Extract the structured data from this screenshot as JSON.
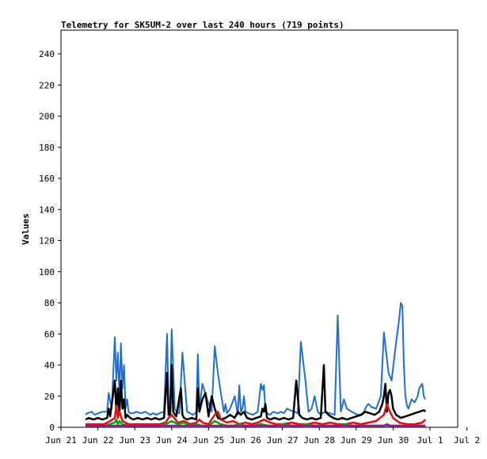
{
  "chart_data": {
    "type": "line",
    "title": "Telemetry for SK5UM-2 over last 240 hours (719 points)",
    "xlabel": "",
    "ylabel": "Values",
    "ylim": [
      0,
      255
    ],
    "xlim": [
      0,
      240
    ],
    "yticks": [
      0,
      20,
      40,
      60,
      80,
      100,
      120,
      140,
      160,
      180,
      200,
      220,
      240
    ],
    "xticks": [
      {
        "label": "Jun 21",
        "hour": 0
      },
      {
        "label": "Jun 22",
        "hour": 24
      },
      {
        "label": "Jun 23",
        "hour": 48
      },
      {
        "label": "Jun 24",
        "hour": 72
      },
      {
        "label": "Jun 25",
        "hour": 96
      },
      {
        "label": "Jun 26",
        "hour": 120
      },
      {
        "label": "Jun 27",
        "hour": 144
      },
      {
        "label": "Jun 28",
        "hour": 168
      },
      {
        "label": "Jun 29",
        "hour": 192
      },
      {
        "label": "Jun 30",
        "hour": 216
      },
      {
        "label": "Jul 1",
        "hour": 240
      },
      {
        "label": "Jul 2",
        "hour": 264
      }
    ],
    "grid": false,
    "legend": "none",
    "series": [
      {
        "color": "#1f6fd1",
        "x": [
          16,
          17,
          20,
          22,
          24,
          27,
          30,
          31,
          33,
          35,
          36,
          37,
          38,
          39,
          40,
          41,
          42,
          43,
          44,
          45,
          47,
          49,
          52,
          55,
          58,
          60,
          62,
          64,
          67,
          69,
          70,
          71,
          72,
          74,
          75,
          77,
          79,
          82,
          84,
          86,
          88,
          89,
          90,
          92,
          95,
          98,
          100,
          102,
          104,
          106,
          107,
          108,
          110,
          113,
          115,
          116,
          117,
          118,
          119,
          120,
          122,
          125,
          128,
          130,
          131,
          132,
          133,
          134,
          136,
          138,
          141,
          143,
          145,
          147,
          149,
          152,
          154,
          156,
          159,
          161,
          163,
          165,
          167,
          168,
          169,
          170,
          172,
          175,
          178,
          180,
          182,
          184,
          186,
          189,
          191,
          193,
          196,
          197,
          198,
          199,
          200,
          202,
          205,
          208,
          210,
          213,
          215,
          218,
          220,
          221,
          222,
          223,
          224,
          225,
          226,
          228,
          230,
          232,
          233,
          235,
          236,
          237
        ],
        "y": [
          8,
          9,
          10,
          8,
          9,
          10,
          10,
          22,
          12,
          58,
          30,
          48,
          20,
          54,
          25,
          40,
          12,
          18,
          10,
          9,
          9,
          10,
          9,
          10,
          8,
          9,
          8,
          9,
          10,
          60,
          12,
          15,
          63,
          12,
          10,
          9,
          48,
          10,
          9,
          8,
          10,
          47,
          12,
          28,
          18,
          10,
          52,
          35,
          22,
          10,
          15,
          9,
          12,
          20,
          8,
          27,
          10,
          12,
          20,
          10,
          9,
          8,
          10,
          28,
          24,
          27,
          10,
          9,
          8,
          10,
          9,
          10,
          9,
          12,
          11,
          10,
          9,
          55,
          30,
          10,
          12,
          20,
          10,
          9,
          8,
          9,
          10,
          9,
          8,
          72,
          10,
          18,
          12,
          10,
          9,
          8,
          8,
          10,
          12,
          14,
          15,
          13,
          12,
          20,
          61,
          35,
          30,
          55,
          70,
          80,
          78,
          40,
          20,
          14,
          12,
          18,
          16,
          20,
          25,
          28,
          20,
          18
        ]
      },
      {
        "color": "#000000",
        "x": [
          16,
          18,
          21,
          24,
          27,
          30,
          31,
          32,
          35,
          36,
          37,
          38,
          39,
          40,
          41,
          42,
          43,
          45,
          47,
          50,
          53,
          56,
          59,
          61,
          64,
          67,
          69,
          70,
          71,
          72,
          73,
          75,
          78,
          79,
          80,
          82,
          85,
          88,
          89,
          90,
          92,
          94,
          96,
          98,
          100,
          102,
          104,
          107,
          110,
          113,
          115,
          117,
          119,
          121,
          124,
          127,
          130,
          131,
          132,
          133,
          134,
          136,
          139,
          142,
          145,
          148,
          151,
          153,
          154,
          155,
          157,
          160,
          163,
          166,
          169,
          171,
          172,
          174,
          177,
          180,
          183,
          186,
          189,
          192,
          195,
          198,
          201,
          204,
          207,
          209,
          210,
          211,
          212,
          213,
          214,
          215,
          216,
          218,
          221,
          224,
          227,
          230,
          233,
          236,
          237
        ],
        "y": [
          5,
          6,
          5,
          6,
          5,
          6,
          12,
          7,
          30,
          10,
          25,
          8,
          30,
          12,
          18,
          6,
          8,
          6,
          5,
          6,
          5,
          6,
          5,
          6,
          5,
          6,
          35,
          8,
          8,
          40,
          10,
          7,
          25,
          8,
          6,
          5,
          6,
          5,
          25,
          10,
          18,
          22,
          7,
          20,
          12,
          6,
          5,
          6,
          8,
          6,
          10,
          8,
          10,
          6,
          5,
          6,
          7,
          12,
          10,
          15,
          6,
          5,
          6,
          5,
          6,
          5,
          6,
          30,
          20,
          8,
          6,
          5,
          6,
          5,
          6,
          40,
          10,
          8,
          6,
          5,
          6,
          5,
          6,
          7,
          8,
          10,
          9,
          8,
          10,
          15,
          20,
          28,
          10,
          22,
          24,
          20,
          12,
          8,
          6,
          7,
          8,
          9,
          10,
          11,
          10
        ]
      },
      {
        "color": "#e01010",
        "x": [
          16,
          20,
          24,
          28,
          30,
          32,
          35,
          36,
          37,
          38,
          40,
          44,
          48,
          52,
          56,
          60,
          64,
          68,
          70,
          72,
          76,
          80,
          84,
          88,
          90,
          92,
          96,
          100,
          102,
          104,
          108,
          112,
          116,
          120,
          124,
          128,
          132,
          136,
          140,
          144,
          150,
          155,
          160,
          165,
          170,
          175,
          180,
          185,
          190,
          195,
          200,
          205,
          210,
          212,
          213,
          214,
          216,
          220,
          225,
          230,
          235,
          237
        ],
        "y": [
          2,
          2,
          2,
          2,
          3,
          4,
          6,
          14,
          6,
          10,
          4,
          2,
          2,
          2,
          2,
          2,
          2,
          3,
          6,
          8,
          3,
          4,
          2,
          3,
          5,
          3,
          2,
          8,
          10,
          5,
          3,
          4,
          2,
          3,
          2,
          3,
          5,
          3,
          2,
          2,
          3,
          2,
          2,
          3,
          2,
          3,
          2,
          2,
          3,
          2,
          3,
          4,
          8,
          15,
          12,
          10,
          6,
          3,
          2,
          2,
          3,
          5
        ]
      },
      {
        "color": "#10a010",
        "x": [
          16,
          20,
          24,
          28,
          32,
          35,
          36,
          37,
          38,
          40,
          44,
          48,
          52,
          56,
          60,
          64,
          68,
          70,
          72,
          76,
          80,
          84,
          88,
          92,
          96,
          100,
          102,
          104,
          108,
          112,
          116,
          120,
          125,
          130,
          135,
          140,
          145,
          150,
          155,
          160,
          165,
          170,
          175,
          180,
          185,
          190,
          195,
          200,
          205,
          210,
          215,
          220,
          225,
          230,
          235,
          237
        ],
        "y": [
          1,
          1,
          1,
          1,
          2,
          3,
          5,
          2,
          4,
          2,
          1,
          1,
          1,
          1,
          1,
          1,
          2,
          3,
          4,
          2,
          3,
          1,
          2,
          1,
          1,
          4,
          3,
          2,
          1,
          1,
          2,
          1,
          1,
          2,
          1,
          1,
          2,
          1,
          1,
          2,
          1,
          1,
          1,
          1,
          2,
          1,
          1,
          1,
          1,
          1,
          1,
          1,
          1,
          1,
          1,
          1
        ]
      },
      {
        "color": "#a010a0",
        "x": [
          16,
          40,
          60,
          80,
          100,
          120,
          140,
          160,
          180,
          200,
          210,
          212,
          214,
          216,
          220,
          237
        ],
        "y": [
          1,
          1,
          1,
          1,
          1,
          1,
          1,
          1,
          1,
          1,
          1,
          2,
          1,
          1,
          1,
          1
        ]
      }
    ]
  }
}
